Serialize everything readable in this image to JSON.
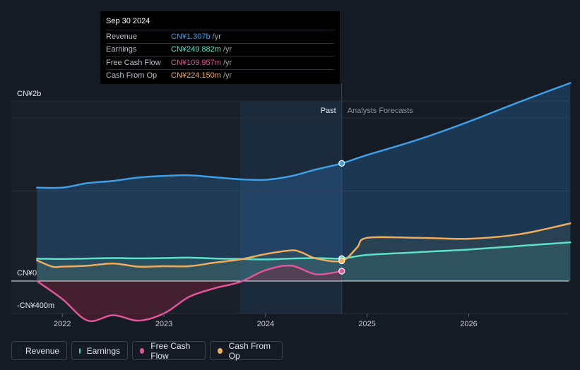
{
  "tooltip": {
    "date": "Sep 30 2024",
    "rows": [
      {
        "label": "Revenue",
        "value": "CN¥1.307b",
        "unit": "/yr",
        "color": "#3d9fe8"
      },
      {
        "label": "Earnings",
        "value": "CN¥249.882m",
        "unit": "/yr",
        "color": "#5ee0c8"
      },
      {
        "label": "Free Cash Flow",
        "value": "CN¥109.957m",
        "unit": "/yr",
        "color": "#e0559a"
      },
      {
        "label": "Cash From Op",
        "value": "CN¥224.150m",
        "unit": "/yr",
        "color": "#f0ad5c"
      }
    ]
  },
  "legend": [
    {
      "label": "Revenue",
      "color": "#3d9fe8"
    },
    {
      "label": "Earnings",
      "color": "#5ee0c8"
    },
    {
      "label": "Free Cash Flow",
      "color": "#e0559a"
    },
    {
      "label": "Cash From Op",
      "color": "#f0ad5c"
    }
  ],
  "chart_data": {
    "type": "line",
    "title": "",
    "past_label": "Past",
    "forecast_label": "Analysts Forecasts",
    "y_labels": [
      "CN¥2b",
      "CN¥0",
      "-CN¥400m"
    ],
    "ylim": [
      -400,
      2000
    ],
    "xlim": [
      2021.72,
      2027.0
    ],
    "x_ticks": [
      2022,
      2023,
      2024,
      2025,
      2026
    ],
    "x_tick_labels": [
      "2022",
      "2023",
      "2024",
      "2025",
      "2026"
    ],
    "past_end": 2024.75,
    "highlight_start": 2023.75,
    "units": "CN¥ millions",
    "series": [
      {
        "name": "Revenue",
        "color": "#3d9fe8",
        "fill": true,
        "x": [
          2021.75,
          2022.0,
          2022.25,
          2022.5,
          2022.75,
          2023.0,
          2023.25,
          2023.5,
          2023.75,
          2024.0,
          2024.25,
          2024.5,
          2024.75,
          2025.0,
          2025.5,
          2026.0,
          2026.5,
          2027.0
        ],
        "y": [
          1038,
          1038,
          1088,
          1112,
          1150,
          1168,
          1175,
          1153,
          1130,
          1125,
          1165,
          1240,
          1307,
          1400,
          1570,
          1770,
          1990,
          2200
        ]
      },
      {
        "name": "Earnings",
        "color": "#5ee0c8",
        "fill": true,
        "x": [
          2021.75,
          2022.0,
          2022.25,
          2022.5,
          2022.75,
          2023.0,
          2023.25,
          2023.5,
          2023.75,
          2024.0,
          2024.25,
          2024.5,
          2024.75,
          2025.0,
          2025.5,
          2026.0,
          2026.5,
          2027.0
        ],
        "y": [
          248,
          245,
          250,
          255,
          252,
          255,
          260,
          250,
          245,
          240,
          250,
          255,
          250,
          290,
          320,
          350,
          390,
          430
        ]
      },
      {
        "name": "Cash From Op",
        "color": "#f0ad5c",
        "fill": true,
        "x": [
          2021.75,
          2021.9,
          2022.0,
          2022.25,
          2022.5,
          2022.75,
          2023.0,
          2023.25,
          2023.5,
          2023.75,
          2024.0,
          2024.25,
          2024.35,
          2024.5,
          2024.75,
          2024.9,
          2025.0,
          2025.5,
          2026.0,
          2026.5,
          2027.0
        ],
        "y": [
          230,
          160,
          160,
          170,
          195,
          160,
          165,
          165,
          205,
          240,
          300,
          340,
          320,
          250,
          224,
          370,
          480,
          480,
          470,
          520,
          640
        ]
      },
      {
        "name": "Free Cash Flow",
        "color": "#e0559a",
        "fill": true,
        "x": [
          2021.75,
          2022.0,
          2022.25,
          2022.5,
          2022.75,
          2023.0,
          2023.25,
          2023.5,
          2023.75,
          2024.0,
          2024.25,
          2024.5,
          2024.75
        ],
        "y": [
          0,
          -200,
          -440,
          -380,
          -440,
          -360,
          -175,
          -80,
          -10,
          120,
          170,
          75,
          110
        ]
      }
    ]
  }
}
